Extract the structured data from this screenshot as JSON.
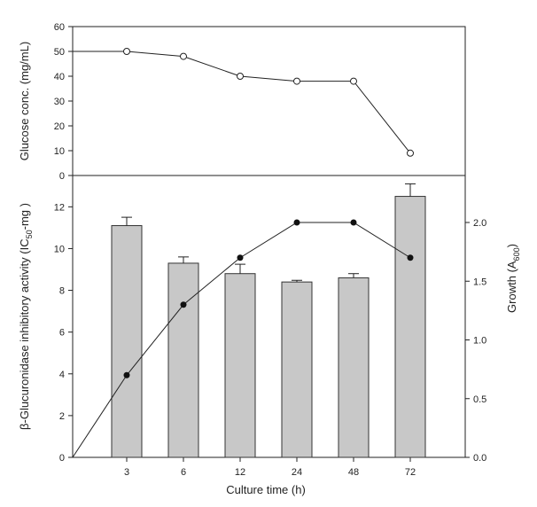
{
  "chart_data": [
    {
      "type": "line",
      "panel": "top",
      "ylabel": {
        "main": "Glucose conc. (mg/mL)"
      },
      "ylim": [
        0,
        60
      ],
      "yticks": [
        0,
        10,
        20,
        30,
        40,
        50,
        60
      ],
      "series": [
        {
          "marker": "open-circle",
          "values": [
            50,
            48,
            40,
            38,
            38,
            9
          ],
          "start_value": 50
        }
      ]
    },
    {
      "type": "bar",
      "panel": "bottom",
      "categories": [
        "3",
        "6",
        "12",
        "24",
        "48",
        "72"
      ],
      "xlabel": "Culture time (h)",
      "ylabel": {
        "pre": "β-Glucuronidase inhibitory activity (IC",
        "sub": "50",
        "post": "-mg )"
      },
      "ylim": [
        0,
        13.5
      ],
      "yticks": [
        0,
        2,
        4,
        6,
        8,
        10,
        12
      ],
      "series": [
        {
          "values": [
            11.1,
            9.3,
            8.8,
            8.4,
            8.6,
            12.5
          ],
          "errors": [
            0.4,
            0.3,
            0.45,
            0.08,
            0.2,
            0.6
          ],
          "color": "#c8c8c8"
        }
      ],
      "y2": {
        "type": "line",
        "label": {
          "pre": "Growth (A",
          "sub": "600",
          "post": ")"
        },
        "ylim": [
          0,
          2.4
        ],
        "yticks": [
          "0.0",
          "0.5",
          "1.0",
          "1.5",
          "2.0"
        ],
        "values": [
          0.7,
          1.3,
          1.7,
          2.0,
          2.0,
          1.7
        ],
        "start_value": 0,
        "marker": "filled-circle"
      }
    }
  ]
}
